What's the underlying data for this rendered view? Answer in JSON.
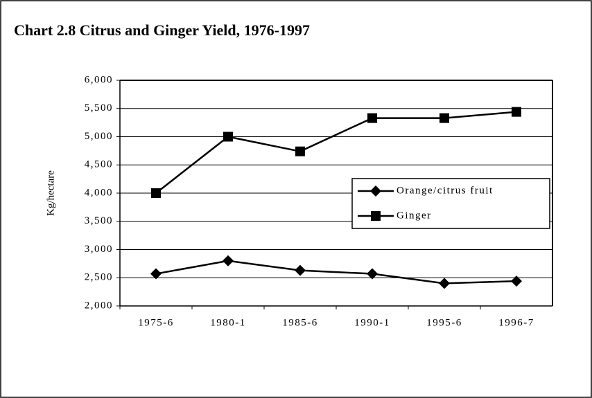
{
  "chart_data": {
    "type": "line",
    "title": "Chart 2.8 Citrus and Ginger Yield, 1976-1997",
    "y_label": "Kg/hectare",
    "categories": [
      "1975-6",
      "1980-1",
      "1985-6",
      "1990-1",
      "1995-6",
      "1996-7"
    ],
    "series": [
      {
        "name": "Orange/citrus fruit",
        "color": "#000000",
        "marker": "diamond",
        "values": [
          2570,
          2800,
          2630,
          2570,
          2400,
          2440
        ]
      },
      {
        "name": "Ginger",
        "color": "#000000",
        "marker": "square",
        "values": [
          4000,
          5000,
          4740,
          5330,
          5330,
          5440
        ]
      }
    ],
    "ylim": [
      2000,
      6000
    ],
    "yticks": [
      {
        "value": 2000,
        "label": "2,000"
      },
      {
        "value": 2500,
        "label": "2,500"
      },
      {
        "value": 3000,
        "label": "3,000"
      },
      {
        "value": 3500,
        "label": "3,500"
      },
      {
        "value": 4000,
        "label": "4,000"
      },
      {
        "value": 4500,
        "label": "4,500"
      },
      {
        "value": 5000,
        "label": "5,000"
      },
      {
        "value": 5500,
        "label": "5,500"
      },
      {
        "value": 6000,
        "label": "6,000"
      }
    ],
    "grid": true,
    "legend": "right"
  }
}
